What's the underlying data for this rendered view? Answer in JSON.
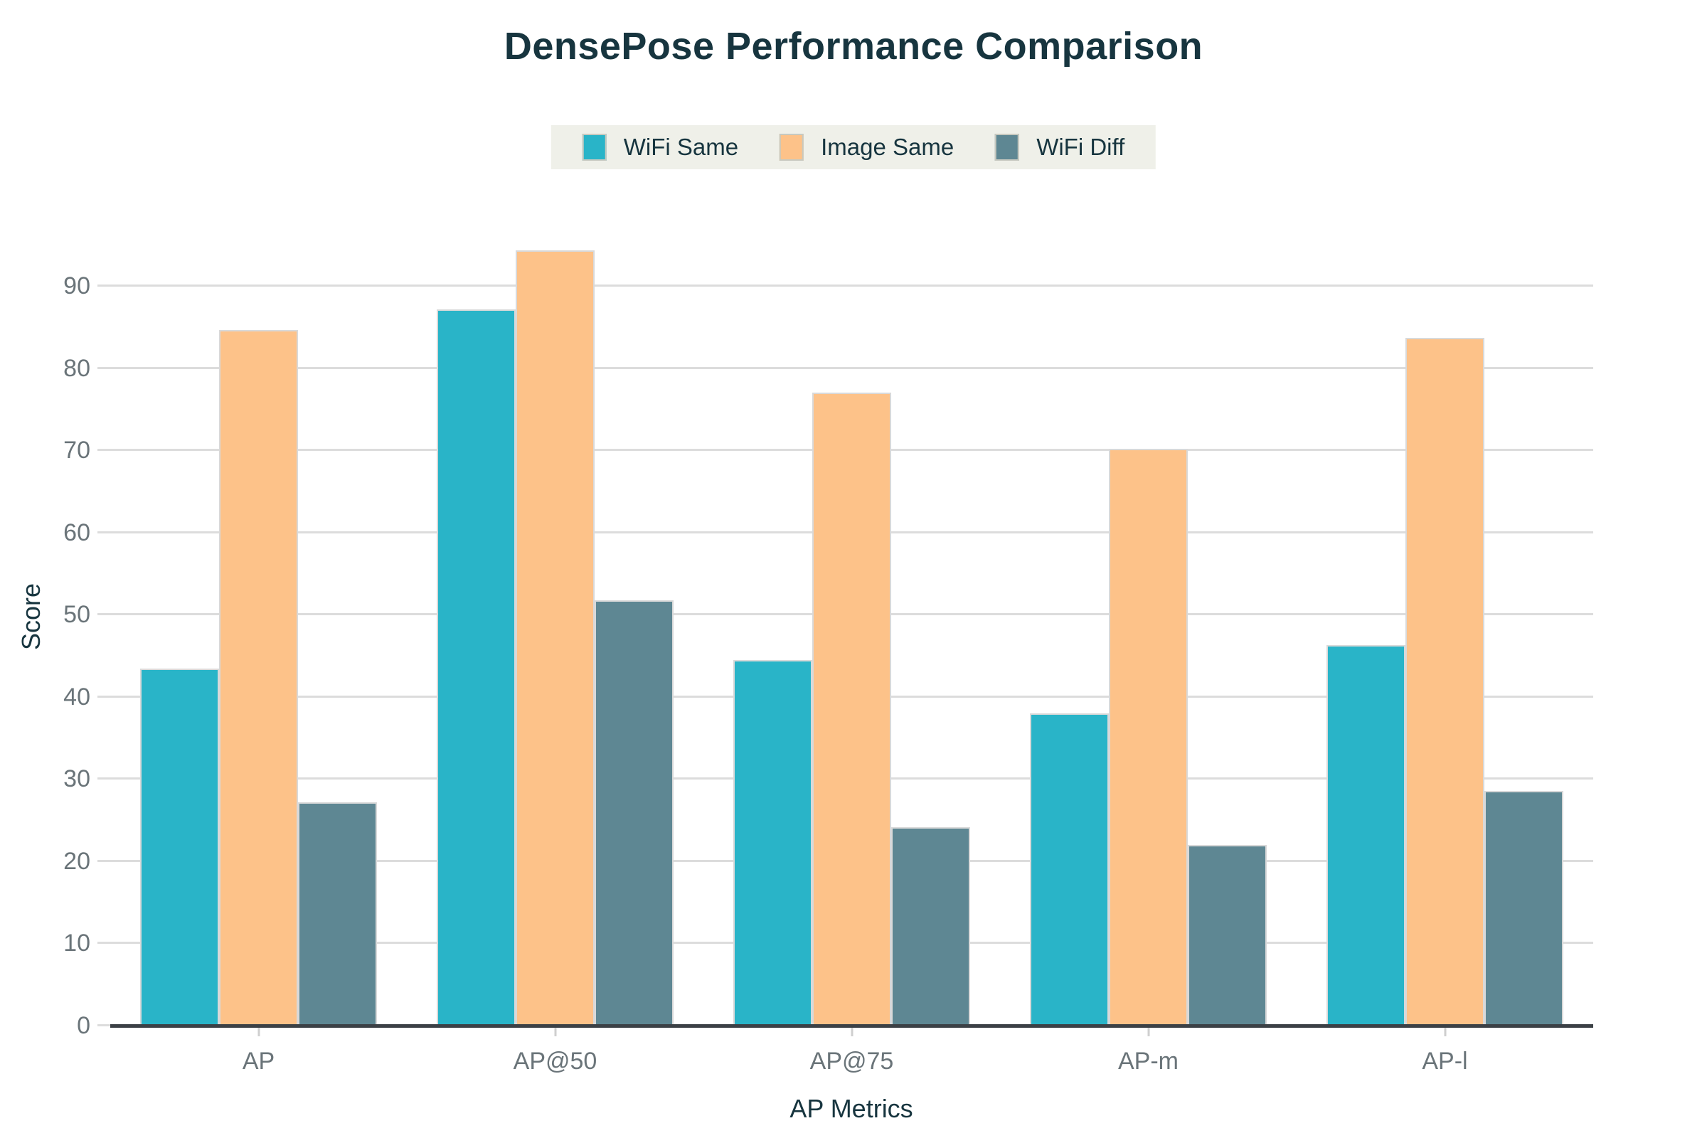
{
  "chart_data": {
    "type": "bar",
    "title": "DensePose Performance Comparison",
    "xlabel": "AP Metrics",
    "ylabel": "Score",
    "categories": [
      "AP",
      "AP@50",
      "AP@75",
      "AP-m",
      "AP-l"
    ],
    "series": [
      {
        "name": "WiFi Same",
        "color": "#29b4c8",
        "values": [
          43.5,
          87.2,
          44.6,
          38.1,
          46.4
        ]
      },
      {
        "name": "Image Same",
        "color": "#fdc289",
        "values": [
          84.7,
          94.4,
          77.1,
          70.3,
          83.8
        ]
      },
      {
        "name": "WiFi Diff",
        "color": "#5e8793",
        "values": [
          27.3,
          51.8,
          24.2,
          22.1,
          28.6
        ]
      }
    ],
    "ylim": [
      0,
      95.5
    ],
    "yticks": [
      0,
      10,
      20,
      30,
      40,
      50,
      60,
      70,
      80,
      90
    ],
    "grid": true,
    "legend_position": "top-center"
  },
  "colors": {
    "background": "#ffffff",
    "title_text": "#17353f",
    "axis_title_text": "#17353f",
    "tick_label_text": "#6a7479",
    "gridline": "#dcdcdc",
    "axis_baseline": "#3b4045",
    "legend_background": "#eff0e9",
    "bar_border": "#d9d9d9"
  }
}
